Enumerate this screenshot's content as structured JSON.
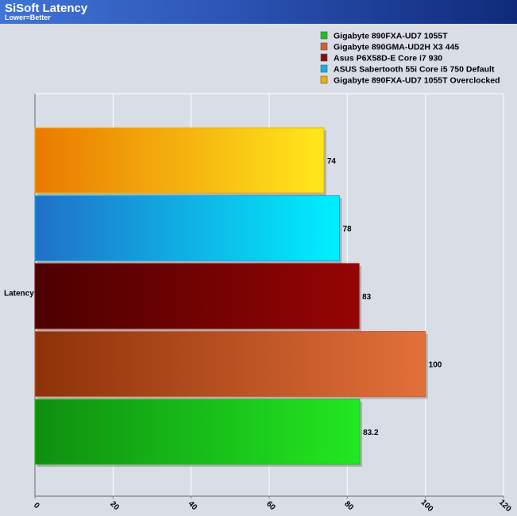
{
  "header": {
    "title": "SiSoft Latency",
    "subtitle": "Lower=Better"
  },
  "chart_data": {
    "type": "bar",
    "orientation": "horizontal",
    "categories": [
      "Latency"
    ],
    "xlim": [
      0,
      120
    ],
    "x_ticks": [
      0,
      20,
      40,
      60,
      80,
      100,
      120
    ],
    "grid": true,
    "legend_position": "top-right",
    "series": [
      {
        "name": "Gigabyte 890FXA-UD7 1055T",
        "value": 83.2,
        "label": "83.2",
        "color_start": "#0e8f0e",
        "color_end": "#22e822",
        "legend_color": "#20c020"
      },
      {
        "name": "Gigabyte 890GMA-UD2H X3 445",
        "value": 100,
        "label": "100",
        "color_start": "#8e3208",
        "color_end": "#e2703a",
        "legend_color": "#d26030"
      },
      {
        "name": "Asus P6X58D-E Core i7 930",
        "value": 83,
        "label": "83",
        "color_start": "#4c0000",
        "color_end": "#960404",
        "legend_color": "#8a1010"
      },
      {
        "name": "ASUS Sabertooth 55i Core i5 750 Default",
        "value": 78,
        "label": "78",
        "color_start": "#2070c8",
        "color_end": "#00f0ff",
        "legend_color": "#10b0e8"
      },
      {
        "name": "Gigabyte 890FXA-UD7 1055T Overclocked",
        "value": 74,
        "label": "74",
        "color_start": "#ea7a00",
        "color_end": "#ffe81c",
        "legend_color": "#f0b000"
      }
    ]
  }
}
